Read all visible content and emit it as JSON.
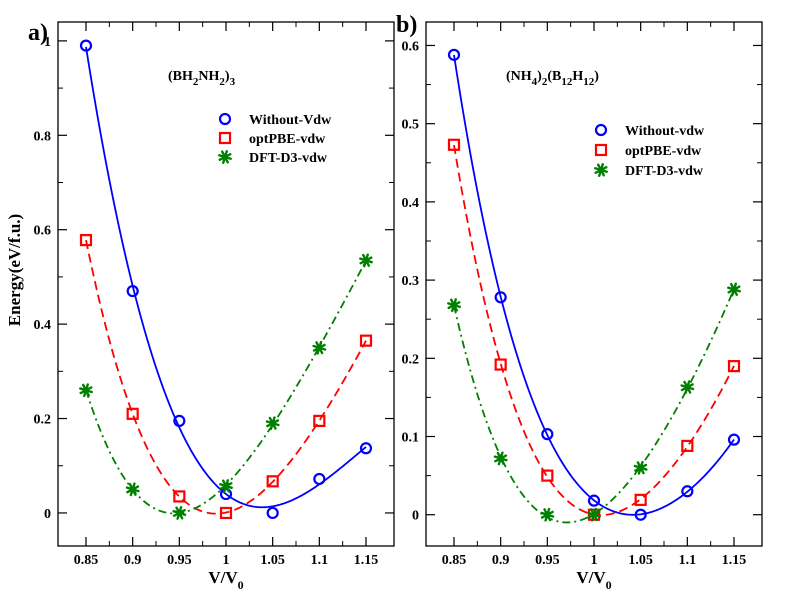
{
  "figure": {
    "panels": [
      {
        "tag": "a)",
        "formula": {
          "parts": [
            [
              "(BH",
              "n"
            ],
            [
              "2",
              "s"
            ],
            [
              "NH",
              "n"
            ],
            [
              "2",
              "s"
            ],
            [
              ")",
              "n"
            ],
            [
              "3",
              "s"
            ]
          ]
        }
      },
      {
        "tag": "b)",
        "formula": {
          "parts": [
            [
              "(NH",
              "n"
            ],
            [
              "4",
              "s"
            ],
            [
              ")",
              "n"
            ],
            [
              "2",
              "s"
            ],
            [
              "(B",
              "n"
            ],
            [
              "12",
              "s"
            ],
            [
              "H",
              "n"
            ],
            [
              "12",
              "s"
            ],
            [
              ")",
              "n"
            ]
          ]
        }
      }
    ],
    "ylabel": "Energy(eV/f.u.)",
    "xlabel": {
      "main": "V/V",
      "sub": "0"
    }
  },
  "colors": {
    "without": "#0000ff",
    "optpbe": "#ff0000",
    "dftd3": "#008000",
    "axis": "#000000",
    "background": "#ffffff"
  },
  "chart_data": [
    {
      "type": "scatter",
      "panel": "a)",
      "xlim": [
        0.82,
        1.18
      ],
      "ylim": [
        -0.07,
        1.04
      ],
      "xticks": [
        0.85,
        0.9,
        0.95,
        1,
        1.05,
        1.1,
        1.15
      ],
      "xtick_labels": [
        "0.85",
        "0.9",
        "0.95",
        "1",
        "1.05",
        "1.1",
        "1.15"
      ],
      "yticks": [
        0,
        0.2,
        0.4,
        0.6,
        0.8,
        1
      ],
      "ytick_labels": [
        "0",
        "0.2",
        "0.4",
        "0.6",
        "0.8",
        "1"
      ],
      "legend_position": "upper-right",
      "x": [
        0.85,
        0.9,
        0.95,
        1.0,
        1.05,
        1.1,
        1.15
      ],
      "series": [
        {
          "name": "Without-Vdw",
          "color": "#0000ff",
          "marker": "circle",
          "line": "solid",
          "values": [
            0.99,
            0.47,
            0.195,
            0.04,
            0.0,
            0.072,
            0.137
          ]
        },
        {
          "name": "optPBE-vdw",
          "color": "#ff0000",
          "marker": "square",
          "line": "dashed",
          "values": [
            0.578,
            0.21,
            0.035,
            0.0,
            0.067,
            0.195,
            0.365
          ]
        },
        {
          "name": "DFT-D3-vdw",
          "color": "#008000",
          "marker": "star",
          "line": "dash-dot",
          "values": [
            0.26,
            0.05,
            0.0,
            0.057,
            0.19,
            0.35,
            0.535
          ]
        }
      ]
    },
    {
      "type": "scatter",
      "panel": "b)",
      "xlim": [
        0.82,
        1.18
      ],
      "ylim": [
        -0.04,
        0.63
      ],
      "xticks": [
        0.85,
        0.9,
        0.95,
        1,
        1.05,
        1.1,
        1.15
      ],
      "xtick_labels": [
        "0.85",
        "0.9",
        "0.95",
        "1",
        "1.05",
        "1.1",
        "1.15"
      ],
      "yticks": [
        0,
        0.1,
        0.2,
        0.3,
        0.4,
        0.5,
        0.6
      ],
      "ytick_labels": [
        "0",
        "0.1",
        "0.2",
        "0.3",
        "0.4",
        "0.5",
        "0.6"
      ],
      "legend_position": "upper-right",
      "x": [
        0.85,
        0.9,
        0.95,
        1.0,
        1.05,
        1.1,
        1.15
      ],
      "series": [
        {
          "name": "Without-vdw",
          "color": "#0000ff",
          "marker": "circle",
          "line": "solid",
          "values": [
            0.588,
            0.278,
            0.103,
            0.018,
            0.0,
            0.03,
            0.096
          ]
        },
        {
          "name": "optPBE-vdw",
          "color": "#ff0000",
          "marker": "square",
          "line": "dashed",
          "values": [
            0.473,
            0.192,
            0.05,
            0.0,
            0.019,
            0.088,
            0.19
          ]
        },
        {
          "name": "DFT-D3-vdw",
          "color": "#008000",
          "marker": "star",
          "line": "dash-dot",
          "values": [
            0.268,
            0.072,
            0.0,
            0.0,
            0.06,
            0.163,
            0.288
          ]
        }
      ]
    }
  ]
}
